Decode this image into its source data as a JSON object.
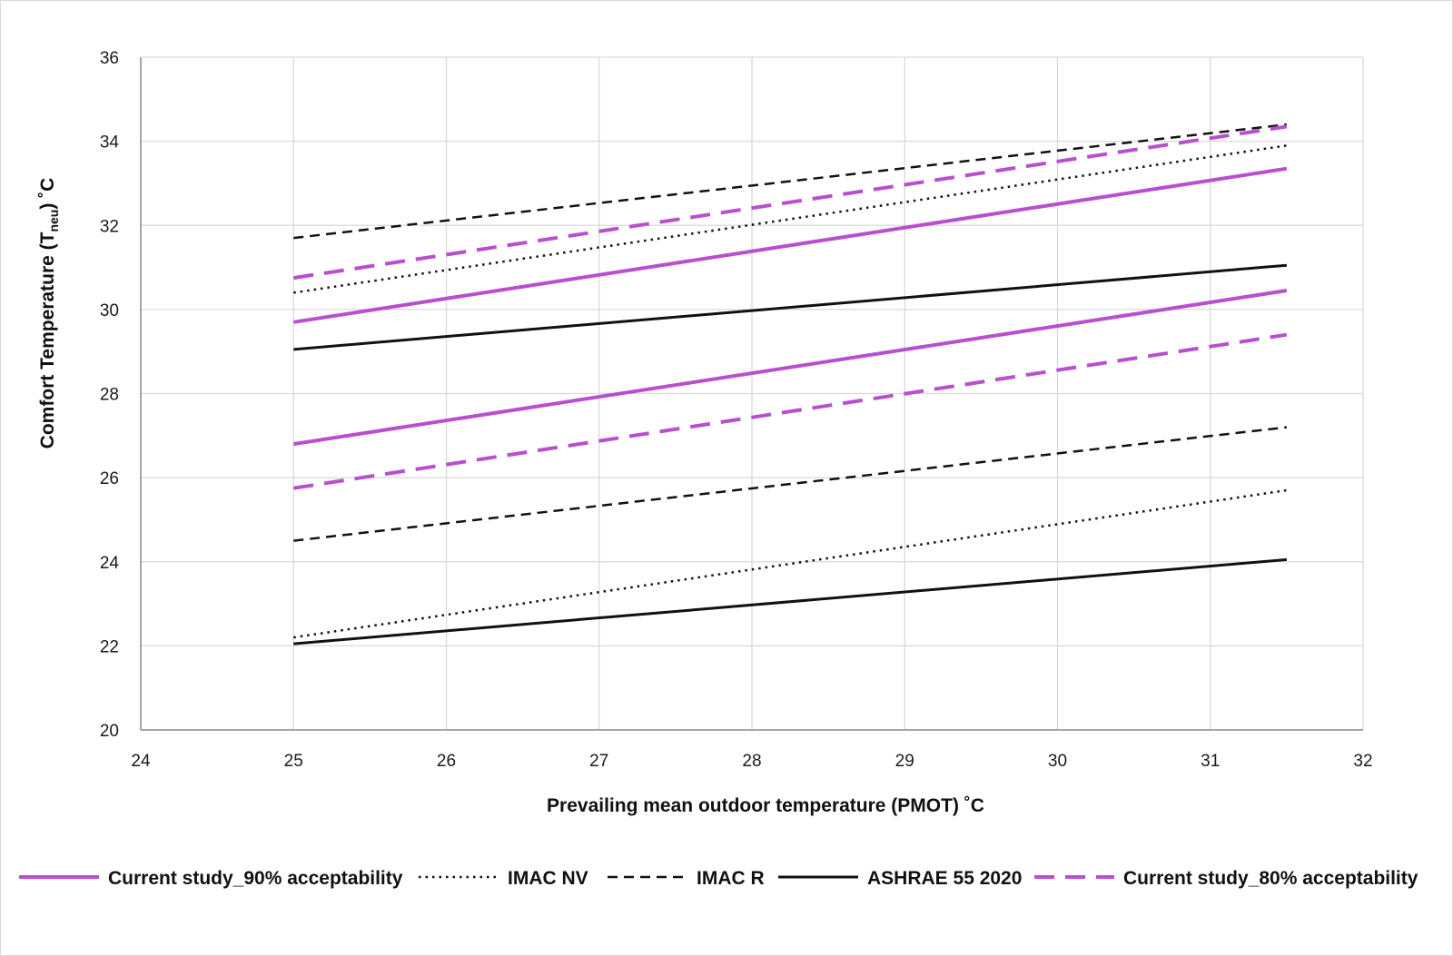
{
  "chart_data": {
    "type": "line",
    "xlabel": "Prevailing mean outdoor temperature (PMOT) ˚C",
    "ylabel": {
      "prefix": "Comfort Temperature (T",
      "subscript": "neu",
      "suffix": ") ˚C"
    },
    "xlim": [
      24,
      32
    ],
    "ylim": [
      20,
      36
    ],
    "xticks": [
      24,
      25,
      26,
      27,
      28,
      29,
      30,
      31,
      32
    ],
    "yticks": [
      20,
      22,
      24,
      26,
      28,
      30,
      32,
      34,
      36
    ],
    "grid": true,
    "legend_position": "bottom",
    "legend": [
      {
        "label": "Current study_90% acceptability",
        "color": "#b84fcf",
        "style": "solid",
        "width": 4
      },
      {
        "label": "IMAC NV",
        "color": "#111111",
        "style": "dotted",
        "width": 2.5
      },
      {
        "label": "IMAC R",
        "color": "#111111",
        "style": "dashed",
        "width": 2.5
      },
      {
        "label": "ASHRAE 55 2020",
        "color": "#111111",
        "style": "solid",
        "width": 3
      },
      {
        "label": "Current study_80% acceptability",
        "color": "#b84fcf",
        "style": "dashed-long",
        "width": 4
      }
    ],
    "series": [
      {
        "legend_index": 0,
        "x": [
          25,
          31.5
        ],
        "y": [
          29.7,
          33.35
        ]
      },
      {
        "legend_index": 0,
        "x": [
          25,
          31.5
        ],
        "y": [
          26.8,
          30.45
        ]
      },
      {
        "legend_index": 1,
        "x": [
          25,
          31.5
        ],
        "y": [
          30.4,
          33.9
        ]
      },
      {
        "legend_index": 1,
        "x": [
          25,
          31.5
        ],
        "y": [
          22.2,
          25.7
        ]
      },
      {
        "legend_index": 2,
        "x": [
          25,
          31.5
        ],
        "y": [
          31.7,
          34.4
        ]
      },
      {
        "legend_index": 2,
        "x": [
          25,
          31.5
        ],
        "y": [
          24.5,
          27.2
        ]
      },
      {
        "legend_index": 3,
        "x": [
          25,
          31.5
        ],
        "y": [
          29.05,
          31.05
        ]
      },
      {
        "legend_index": 3,
        "x": [
          25,
          31.5
        ],
        "y": [
          22.05,
          24.05
        ]
      },
      {
        "legend_index": 4,
        "x": [
          25,
          31.5
        ],
        "y": [
          30.75,
          34.35
        ]
      },
      {
        "legend_index": 4,
        "x": [
          25,
          31.5
        ],
        "y": [
          25.75,
          29.4
        ]
      }
    ]
  }
}
